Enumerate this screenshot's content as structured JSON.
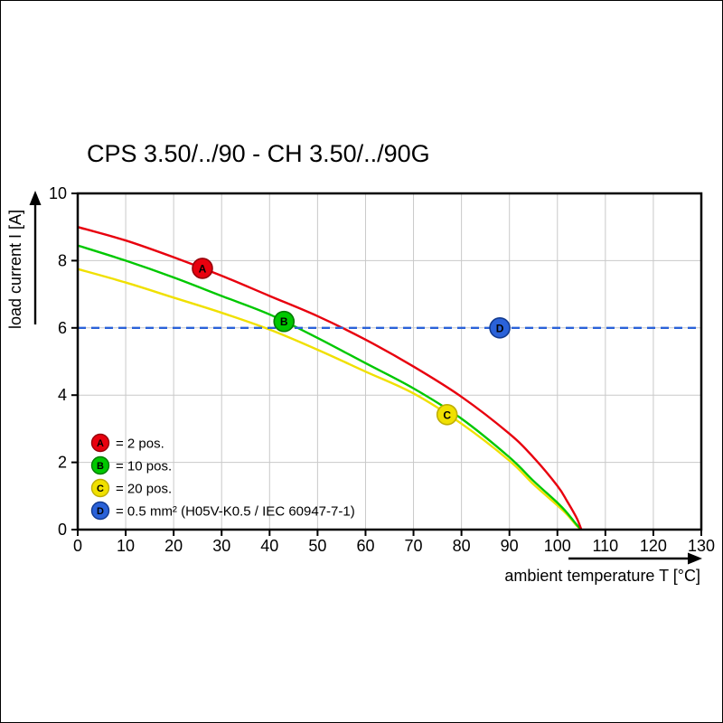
{
  "chart_data": {
    "type": "line",
    "title": "CPS 3.50/../90 - CH 3.50/../90G",
    "xlabel": "ambient temperature T [°C]",
    "ylabel": "load current I [A]",
    "xlim": [
      0,
      130
    ],
    "ylim": [
      0,
      10
    ],
    "xticks": [
      0,
      10,
      20,
      30,
      40,
      50,
      60,
      70,
      80,
      90,
      100,
      110,
      120,
      130
    ],
    "yticks": [
      0,
      2,
      4,
      6,
      8,
      10
    ],
    "grid": true,
    "legend_position": "lower-left",
    "colors": {
      "grid": "#c9c9c9",
      "axis": "#000000",
      "background": "#ffffff"
    },
    "series": [
      {
        "id": "A",
        "name": "2 pos.",
        "color": "#e8000e",
        "ring": "#97000a",
        "style": "solid",
        "points": [
          [
            0,
            9.0
          ],
          [
            10,
            8.6
          ],
          [
            20,
            8.1
          ],
          [
            30,
            7.55
          ],
          [
            40,
            6.95
          ],
          [
            50,
            6.35
          ],
          [
            60,
            5.65
          ],
          [
            70,
            4.85
          ],
          [
            80,
            3.95
          ],
          [
            90,
            2.85
          ],
          [
            95,
            2.15
          ],
          [
            100,
            1.3
          ],
          [
            102,
            0.85
          ],
          [
            104,
            0.35
          ],
          [
            105,
            0
          ]
        ]
      },
      {
        "id": "B",
        "name": "10 pos.",
        "color": "#00c800",
        "ring": "#007a00",
        "style": "solid",
        "points": [
          [
            0,
            8.45
          ],
          [
            10,
            8.0
          ],
          [
            20,
            7.5
          ],
          [
            30,
            6.95
          ],
          [
            40,
            6.4
          ],
          [
            50,
            5.7
          ],
          [
            60,
            4.95
          ],
          [
            70,
            4.2
          ],
          [
            80,
            3.3
          ],
          [
            90,
            2.15
          ],
          [
            95,
            1.45
          ],
          [
            100,
            0.8
          ],
          [
            102,
            0.5
          ],
          [
            104,
            0.15
          ],
          [
            105,
            0
          ]
        ]
      },
      {
        "id": "C",
        "name": "20 pos.",
        "color": "#f0e000",
        "ring": "#bfae00",
        "style": "solid",
        "points": [
          [
            0,
            7.75
          ],
          [
            10,
            7.35
          ],
          [
            20,
            6.9
          ],
          [
            30,
            6.45
          ],
          [
            40,
            5.95
          ],
          [
            50,
            5.35
          ],
          [
            60,
            4.7
          ],
          [
            70,
            4.05
          ],
          [
            80,
            3.15
          ],
          [
            90,
            2.05
          ],
          [
            95,
            1.35
          ],
          [
            100,
            0.72
          ],
          [
            102,
            0.45
          ],
          [
            104,
            0.12
          ],
          [
            105,
            0
          ]
        ]
      },
      {
        "id": "D",
        "name": "0.5 mm² (H05V-K0.5 / IEC 60947-7-1)",
        "color": "#2a62d9",
        "ring": "#123a8f",
        "style": "dashed",
        "points": [
          [
            0,
            6
          ],
          [
            130,
            6
          ]
        ]
      }
    ],
    "markers": [
      {
        "letter": "A",
        "series": "A",
        "t": 26
      },
      {
        "letter": "B",
        "series": "B",
        "t": 43
      },
      {
        "letter": "C",
        "series": "C",
        "t": 77
      },
      {
        "letter": "D",
        "series": "D",
        "t": 88,
        "i": 6
      }
    ],
    "legend": [
      {
        "letter": "A",
        "label": "= 2 pos."
      },
      {
        "letter": "B",
        "label": "= 10 pos."
      },
      {
        "letter": "C",
        "label": "= 20 pos."
      },
      {
        "letter": "D",
        "label": "= 0.5 mm² (H05V-K0.5 / IEC 60947-7-1)"
      }
    ]
  }
}
